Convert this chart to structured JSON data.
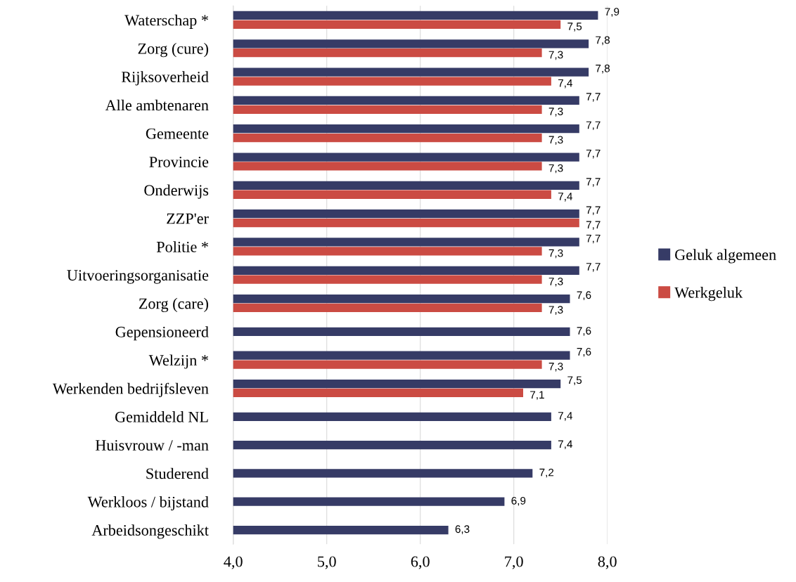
{
  "chart_data": {
    "type": "bar",
    "orientation": "horizontal",
    "categories": [
      "Waterschap *",
      "Zorg (cure)",
      "Rijksoverheid",
      "Alle ambtenaren",
      "Gemeente",
      "Provincie",
      "Onderwijs",
      "ZZP'er",
      "Politie *",
      "Uitvoeringsorganisatie",
      "Zorg (care)",
      "Gepensioneerd",
      "Welzijn *",
      "Werkenden bedrijfsleven",
      "Gemiddeld NL",
      "Huisvrouw / -man",
      "Studerend",
      "Werkloos / bijstand",
      "Arbeidsongeschikt"
    ],
    "series": [
      {
        "name": "Geluk algemeen",
        "color": "#363b66",
        "values": [
          7.9,
          7.8,
          7.8,
          7.7,
          7.7,
          7.7,
          7.7,
          7.7,
          7.7,
          7.7,
          7.6,
          7.6,
          7.6,
          7.5,
          7.4,
          7.4,
          7.2,
          6.9,
          6.3
        ],
        "value_labels": [
          "7,9",
          "7,8",
          "7,8",
          "7,7",
          "7,7",
          "7,7",
          "7,7",
          "7,7",
          "7,7",
          "7,7",
          "7,6",
          "7,6",
          "7,6",
          "7,5",
          "7,4",
          "7,4",
          "7,2",
          "6,9",
          "6,3"
        ]
      },
      {
        "name": "Werkgeluk",
        "color": "#cb4b43",
        "values": [
          7.5,
          7.3,
          7.4,
          7.3,
          7.3,
          7.3,
          7.4,
          7.7,
          7.3,
          7.3,
          7.3,
          null,
          7.3,
          7.1,
          null,
          null,
          null,
          null,
          null
        ],
        "value_labels": [
          "7,5",
          "7,3",
          "7,4",
          "7,3",
          "7,3",
          "7,3",
          "7,4",
          "7,7",
          "7,3",
          "7,3",
          "7,3",
          null,
          "7,3",
          "7,1",
          null,
          null,
          null,
          null,
          null
        ]
      }
    ],
    "xlim": [
      4,
      8
    ],
    "xticks": [
      {
        "value": 4,
        "label": "4,0"
      },
      {
        "value": 5,
        "label": "5,0"
      },
      {
        "value": 6,
        "label": "6,0"
      },
      {
        "value": 7,
        "label": "7,0"
      },
      {
        "value": 8,
        "label": "8,0"
      }
    ],
    "grid": "x",
    "legend": "right"
  }
}
